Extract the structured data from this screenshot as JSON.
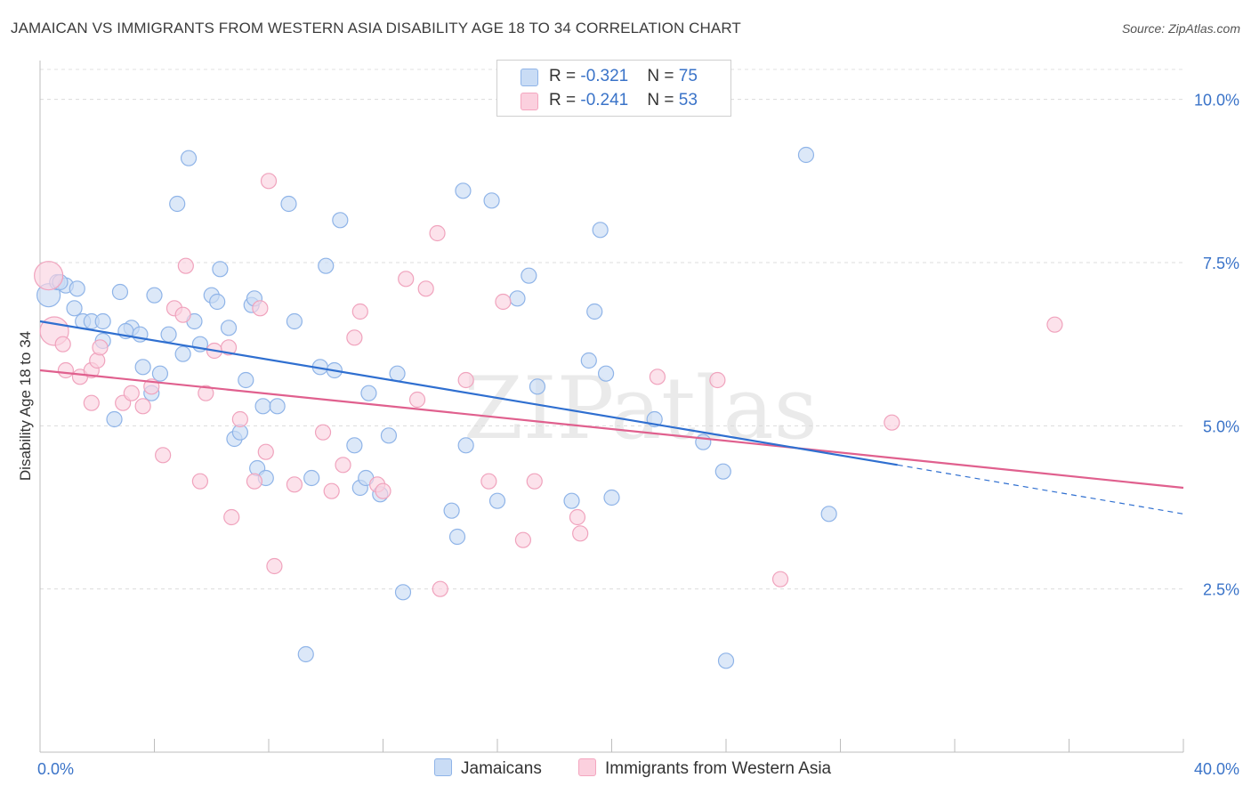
{
  "title": "JAMAICAN VS IMMIGRANTS FROM WESTERN ASIA DISABILITY AGE 18 TO 34 CORRELATION CHART",
  "source": "Source: ZipAtlas.com",
  "watermark": "ZIPatlas",
  "legend_top": [
    {
      "r_label": "R = ",
      "r_value": "-0.321",
      "n_label": "N = ",
      "n_value": "75"
    },
    {
      "r_label": "R = ",
      "r_value": "-0.241",
      "n_label": "N = ",
      "n_value": "53"
    }
  ],
  "chart_data": {
    "type": "scatter",
    "title": "JAMAICAN VS IMMIGRANTS FROM WESTERN ASIA DISABILITY AGE 18 TO 34 CORRELATION CHART",
    "xlabel": "",
    "ylabel": "Disability Age 18 to 34",
    "xlim": [
      0,
      40
    ],
    "ylim": [
      0,
      10.5
    ],
    "x_tick_labels": [
      "0.0%",
      "40.0%"
    ],
    "y_ticks": [
      2.5,
      5.0,
      7.5,
      10.0
    ],
    "y_tick_labels": [
      "2.5%",
      "5.0%",
      "7.5%",
      "10.0%"
    ],
    "grid": true,
    "legend_position": "bottom",
    "colors": {
      "Jamaicans": "#8fb4e8",
      "Immigrants from Western Asia": "#f4a6bf",
      "trend_blue": "#2f6fd0",
      "trend_pink": "#e0608e"
    },
    "series": [
      {
        "name": "Jamaicans",
        "r": -0.321,
        "n": 75,
        "trend": {
          "x": [
            0,
            30
          ],
          "y": [
            6.6,
            4.4
          ],
          "dashed_to": [
            40,
            3.65
          ]
        },
        "points": [
          [
            0.3,
            7.0
          ],
          [
            0.6,
            7.2
          ],
          [
            0.9,
            7.15
          ],
          [
            0.7,
            7.2
          ],
          [
            1.5,
            6.6
          ],
          [
            1.2,
            6.8
          ],
          [
            2.2,
            6.3
          ],
          [
            2.8,
            7.05
          ],
          [
            3.2,
            6.5
          ],
          [
            3.0,
            6.45
          ],
          [
            3.6,
            5.9
          ],
          [
            3.9,
            5.5
          ],
          [
            4.2,
            5.8
          ],
          [
            4.5,
            6.4
          ],
          [
            4.0,
            7.0
          ],
          [
            5.0,
            6.1
          ],
          [
            5.2,
            9.1
          ],
          [
            4.8,
            8.4
          ],
          [
            5.4,
            6.6
          ],
          [
            5.6,
            6.25
          ],
          [
            6.0,
            7.0
          ],
          [
            6.2,
            6.9
          ],
          [
            6.3,
            7.4
          ],
          [
            6.6,
            6.5
          ],
          [
            2.6,
            5.1
          ],
          [
            7.2,
            5.7
          ],
          [
            7.4,
            6.85
          ],
          [
            7.5,
            6.95
          ],
          [
            6.8,
            4.8
          ],
          [
            7.0,
            4.9
          ],
          [
            7.6,
            4.35
          ],
          [
            7.8,
            5.3
          ],
          [
            8.3,
            5.3
          ],
          [
            8.9,
            6.6
          ],
          [
            8.7,
            8.4
          ],
          [
            7.9,
            4.2
          ],
          [
            9.5,
            4.2
          ],
          [
            9.8,
            5.9
          ],
          [
            10.3,
            5.85
          ],
          [
            10.0,
            7.45
          ],
          [
            10.5,
            8.15
          ],
          [
            11.0,
            4.7
          ],
          [
            11.2,
            4.05
          ],
          [
            11.4,
            4.2
          ],
          [
            11.5,
            5.5
          ],
          [
            11.9,
            3.95
          ],
          [
            12.2,
            4.85
          ],
          [
            12.5,
            5.8
          ],
          [
            12.7,
            2.45
          ],
          [
            14.4,
            3.7
          ],
          [
            14.6,
            3.3
          ],
          [
            14.8,
            8.6
          ],
          [
            14.9,
            4.7
          ],
          [
            15.8,
            8.45
          ],
          [
            16.0,
            3.85
          ],
          [
            17.1,
            7.3
          ],
          [
            16.7,
            6.95
          ],
          [
            17.4,
            5.6
          ],
          [
            18.6,
            3.85
          ],
          [
            19.2,
            6.0
          ],
          [
            19.4,
            6.75
          ],
          [
            19.6,
            8.0
          ],
          [
            19.8,
            5.8
          ],
          [
            20.0,
            3.9
          ],
          [
            21.5,
            5.1
          ],
          [
            23.2,
            4.75
          ],
          [
            23.9,
            4.3
          ],
          [
            24.0,
            1.4
          ],
          [
            26.8,
            9.15
          ],
          [
            27.6,
            3.65
          ],
          [
            9.3,
            1.5
          ],
          [
            1.8,
            6.6
          ],
          [
            1.3,
            7.1
          ],
          [
            3.5,
            6.4
          ],
          [
            2.2,
            6.6
          ]
        ]
      },
      {
        "name": "Immigrants from Western Asia",
        "r": -0.241,
        "n": 53,
        "trend": {
          "x": [
            0,
            40
          ],
          "y": [
            5.85,
            4.05
          ]
        },
        "points": [
          [
            0.3,
            7.3
          ],
          [
            0.5,
            6.45
          ],
          [
            0.8,
            6.25
          ],
          [
            0.9,
            5.85
          ],
          [
            1.4,
            5.75
          ],
          [
            1.8,
            5.85
          ],
          [
            2.0,
            6.0
          ],
          [
            2.1,
            6.2
          ],
          [
            1.8,
            5.35
          ],
          [
            2.9,
            5.35
          ],
          [
            3.2,
            5.5
          ],
          [
            3.6,
            5.3
          ],
          [
            3.9,
            5.6
          ],
          [
            4.3,
            4.55
          ],
          [
            4.7,
            6.8
          ],
          [
            5.0,
            6.7
          ],
          [
            5.1,
            7.45
          ],
          [
            5.6,
            4.15
          ],
          [
            5.8,
            5.5
          ],
          [
            6.1,
            6.15
          ],
          [
            6.6,
            6.2
          ],
          [
            6.7,
            3.6
          ],
          [
            7.0,
            5.1
          ],
          [
            7.5,
            4.15
          ],
          [
            7.7,
            6.8
          ],
          [
            7.9,
            4.6
          ],
          [
            8.0,
            8.75
          ],
          [
            8.2,
            2.85
          ],
          [
            8.9,
            4.1
          ],
          [
            9.9,
            4.9
          ],
          [
            10.2,
            4.0
          ],
          [
            10.6,
            4.4
          ],
          [
            11.0,
            6.35
          ],
          [
            11.2,
            6.75
          ],
          [
            11.8,
            4.1
          ],
          [
            12.0,
            4.0
          ],
          [
            12.8,
            7.25
          ],
          [
            13.2,
            5.4
          ],
          [
            13.5,
            7.1
          ],
          [
            13.9,
            7.95
          ],
          [
            14.0,
            2.5
          ],
          [
            14.9,
            5.7
          ],
          [
            15.7,
            4.15
          ],
          [
            16.2,
            6.9
          ],
          [
            16.9,
            3.25
          ],
          [
            17.3,
            4.15
          ],
          [
            18.8,
            3.6
          ],
          [
            18.9,
            3.35
          ],
          [
            21.6,
            5.75
          ],
          [
            23.7,
            5.7
          ],
          [
            25.9,
            2.65
          ],
          [
            29.8,
            5.05
          ],
          [
            35.5,
            6.55
          ]
        ]
      }
    ]
  }
}
